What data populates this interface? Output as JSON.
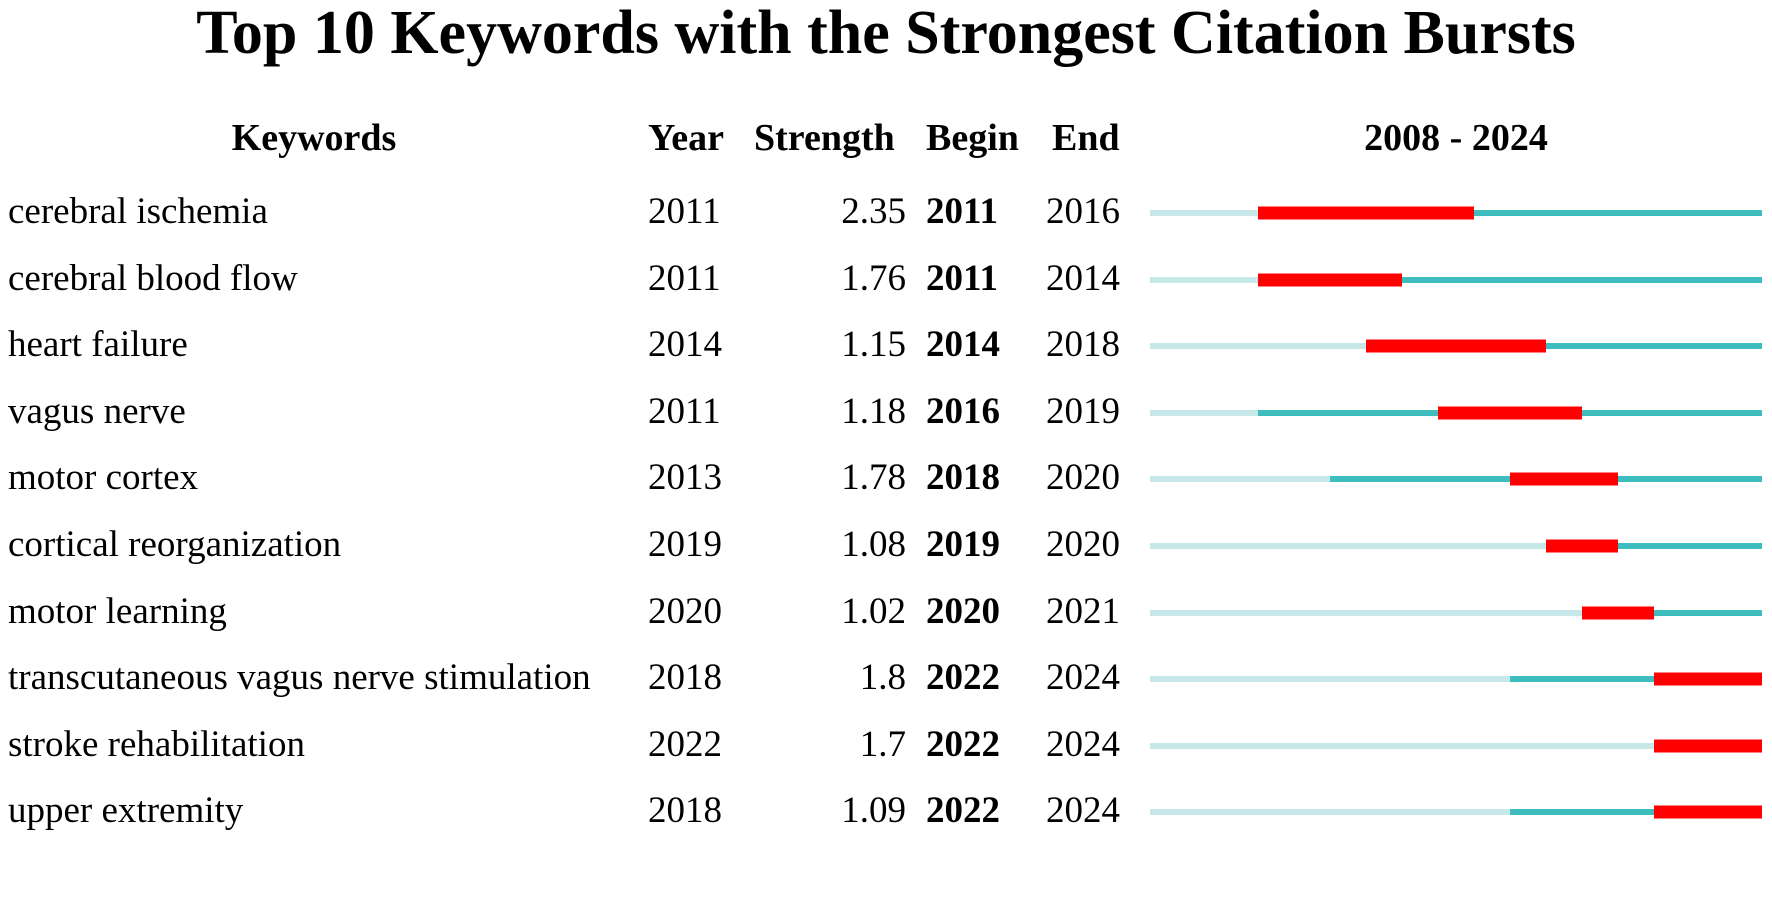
{
  "chart_data": {
    "type": "table",
    "title": "Top 10 Keywords with the Strongest Citation Bursts",
    "columns": [
      "Keywords",
      "Year",
      "Strength",
      "Begin",
      "End",
      "2008 - 2024"
    ],
    "range_label": "2008 - 2024",
    "range": [
      2008,
      2024
    ],
    "rows": [
      {
        "keyword": "cerebral ischemia",
        "year": "2011",
        "strength": "2.35",
        "begin": "2011",
        "end": "2016"
      },
      {
        "keyword": "cerebral blood flow",
        "year": "2011",
        "strength": "1.76",
        "begin": "2011",
        "end": "2014"
      },
      {
        "keyword": "heart failure",
        "year": "2014",
        "strength": "1.15",
        "begin": "2014",
        "end": "2018"
      },
      {
        "keyword": "vagus nerve",
        "year": "2011",
        "strength": "1.18",
        "begin": "2016",
        "end": "2019"
      },
      {
        "keyword": "motor cortex",
        "year": "2013",
        "strength": "1.78",
        "begin": "2018",
        "end": "2020"
      },
      {
        "keyword": "cortical reorganization",
        "year": "2019",
        "strength": "1.08",
        "begin": "2019",
        "end": "2020"
      },
      {
        "keyword": "motor learning",
        "year": "2020",
        "strength": "1.02",
        "begin": "2020",
        "end": "2021"
      },
      {
        "keyword": "transcutaneous vagus nerve stimulation",
        "year": "2018",
        "strength": "1.8",
        "begin": "2022",
        "end": "2024"
      },
      {
        "keyword": "stroke rehabilitation",
        "year": "2022",
        "strength": "1.7",
        "begin": "2022",
        "end": "2024"
      },
      {
        "keyword": "upper extremity",
        "year": "2018",
        "strength": "1.09",
        "begin": "2022",
        "end": "2024"
      }
    ],
    "colors": {
      "burst": "#ff0000",
      "active": "#3dbdbd",
      "inactive": "#c6e8e8"
    }
  }
}
